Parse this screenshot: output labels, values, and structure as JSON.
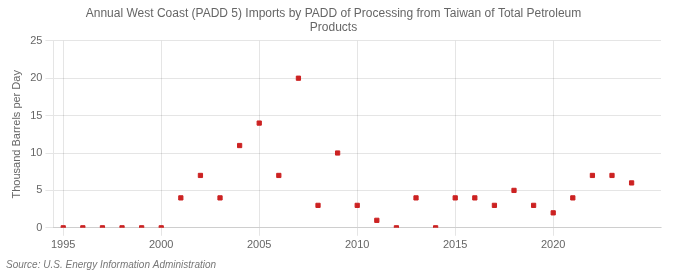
{
  "chart_data": {
    "type": "scatter",
    "title": "Annual West Coast (PADD 5) Imports by PADD of Processing from Taiwan of Total Petroleum\nProducts",
    "ylabel": "Thousand Barrels per Day",
    "source": "Source: U.S. Energy Information Administration",
    "x": [
      1995,
      1996,
      1997,
      1998,
      1999,
      2000,
      2001,
      2002,
      2003,
      2004,
      2005,
      2006,
      2007,
      2008,
      2009,
      2010,
      2011,
      2012,
      2013,
      2014,
      2015,
      2016,
      2017,
      2018,
      2019,
      2020,
      2021,
      2022,
      2023,
      2024
    ],
    "values": [
      0,
      0,
      0,
      0,
      0,
      0,
      4,
      7,
      4,
      11,
      14,
      7,
      20,
      3,
      10,
      3,
      1,
      0,
      4,
      0,
      4,
      4,
      3,
      5,
      3,
      2,
      4,
      7,
      7,
      6
    ],
    "color": "#cc2222",
    "marker": "square",
    "xlim": [
      1994.5,
      2025.5
    ],
    "ylim": [
      0,
      25
    ],
    "xticks": [
      1995,
      2000,
      2005,
      2010,
      2015,
      2020
    ],
    "yticks": [
      0,
      5,
      10,
      15,
      20,
      25
    ],
    "grid": true
  }
}
